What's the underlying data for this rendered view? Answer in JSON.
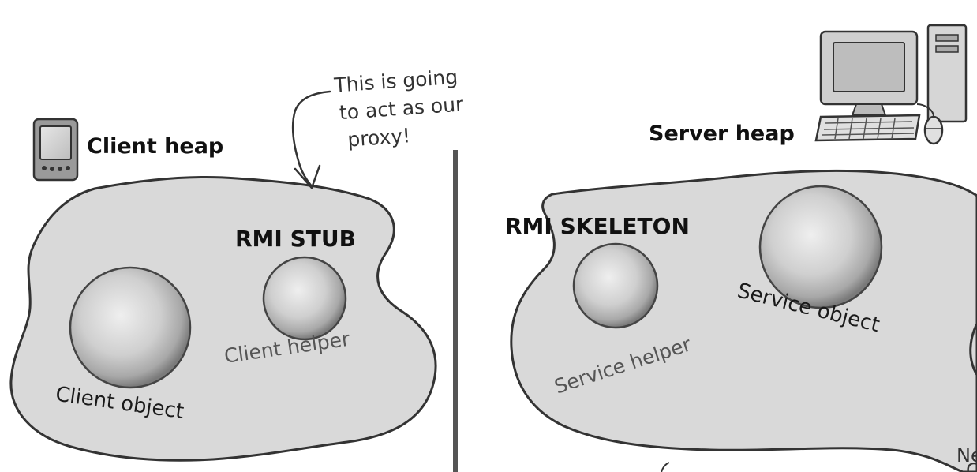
{
  "client_side": {
    "heap_label": "Client heap",
    "stub_label": "RMI STUB",
    "client_object_label": "Client object",
    "client_helper_label": "Client helper",
    "annotation_lines": [
      "This is going",
      "to act as our",
      "proxy!"
    ],
    "device_icon": "pda-icon"
  },
  "server_side": {
    "heap_label": "Server heap",
    "skeleton_label": "RMI SKELETON",
    "service_helper_label": "Service helper",
    "service_object_label": "Service object",
    "device_icon": "desktop-computer-icon",
    "cutoff_text_top": "Ne",
    "cutoff_text_bottom": "C"
  },
  "colors": {
    "heap_fill": "#d9d9d9",
    "heap_stroke": "#333333",
    "divider": "#555555",
    "sphere_light": "#f2f2f2",
    "sphere_dark": "#8c8c8c"
  }
}
